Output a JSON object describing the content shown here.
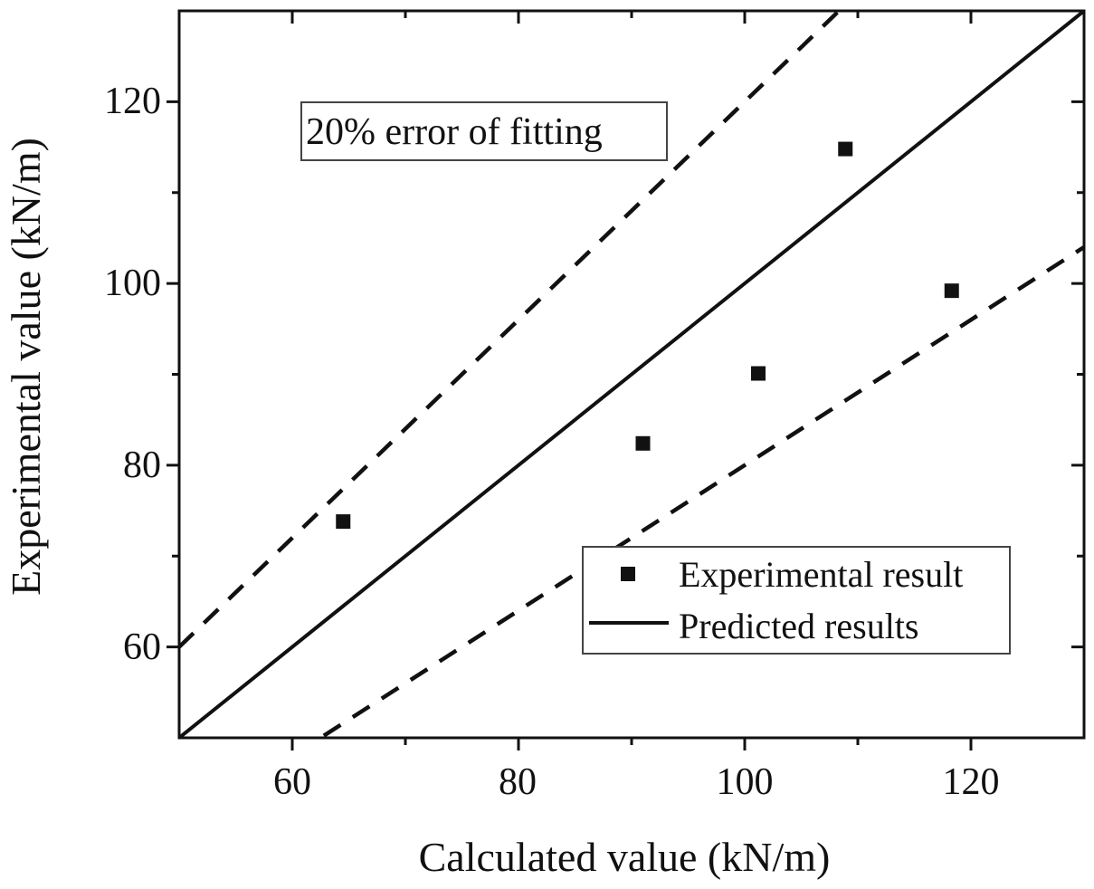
{
  "chart_data": {
    "type": "scatter",
    "title": "",
    "xlabel": "Calculated value (kN/m)",
    "ylabel": "Experimental value (kN/m)",
    "xlim": [
      50,
      130
    ],
    "ylim": [
      50,
      130
    ],
    "x_ticks": [
      60,
      80,
      100,
      120
    ],
    "y_ticks": [
      60,
      80,
      100,
      120
    ],
    "x_tick_labels": [
      "60",
      "80",
      "100",
      "120"
    ],
    "y_tick_labels": [
      "60",
      "80",
      "100",
      "120"
    ],
    "grid": false,
    "series": [
      {
        "name": "Experimental result",
        "kind": "scatter",
        "marker": "square",
        "points": [
          {
            "x": 64.5,
            "y": 73.8
          },
          {
            "x": 91.0,
            "y": 82.4
          },
          {
            "x": 101.2,
            "y": 90.1
          },
          {
            "x": 108.9,
            "y": 114.8
          },
          {
            "x": 118.3,
            "y": 99.2
          }
        ]
      },
      {
        "name": "Predicted results",
        "kind": "line",
        "slope": 1.0,
        "style": "solid"
      },
      {
        "name": "upper error bound",
        "kind": "line",
        "slope": 1.2,
        "style": "dashed"
      },
      {
        "name": "lower error bound",
        "kind": "line",
        "slope": 0.8,
        "style": "dashed"
      }
    ],
    "annotation": "20% error of fitting",
    "legend": {
      "position": "bottom-right",
      "entries": [
        "Experimental result",
        "Predicted results"
      ]
    },
    "colors": {
      "ink": "#111111",
      "background": "#ffffff"
    }
  }
}
